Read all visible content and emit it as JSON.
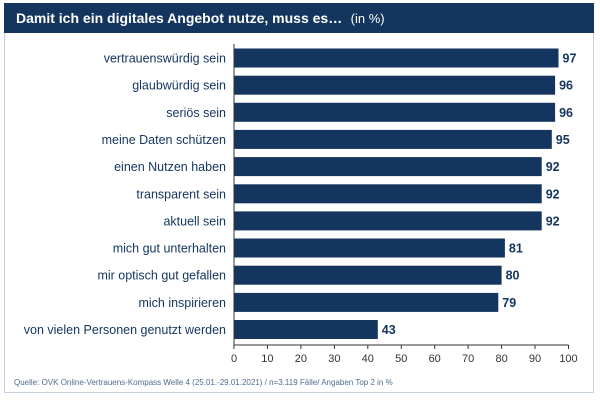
{
  "header": {
    "title": "Damit ich ein digitales Angebot nutze, muss es…",
    "unit_note": "(in %)"
  },
  "source_note": "Quelle: OVK Online-Vertrauens-Kompass Welle 4 (25.01.-29.01.2021) / n=3.119 Fälle/ Angaben Top 2 in %",
  "colors": {
    "bar": "#13355e",
    "header_bg": "#13355e",
    "axis": "#333333",
    "label_text": "#13355e"
  },
  "chart_data": {
    "type": "bar",
    "orientation": "horizontal",
    "title": "Damit ich ein digitales Angebot nutze, muss es…",
    "xlabel": "",
    "ylabel": "",
    "xlim": [
      0,
      100
    ],
    "xticks": [
      0,
      10,
      20,
      30,
      40,
      50,
      60,
      70,
      80,
      90,
      100
    ],
    "grid": false,
    "categories": [
      "vertrauenswürdig sein",
      "glaubwürdig sein",
      "seriös sein",
      "meine Daten schützen",
      "einen Nutzen haben",
      "transparent sein",
      "aktuell sein",
      "mich gut unterhalten",
      "mir optisch gut gefallen",
      "mich inspirieren",
      "von vielen Personen genutzt werden"
    ],
    "values": [
      97,
      96,
      96,
      95,
      92,
      92,
      92,
      81,
      80,
      79,
      43
    ]
  }
}
